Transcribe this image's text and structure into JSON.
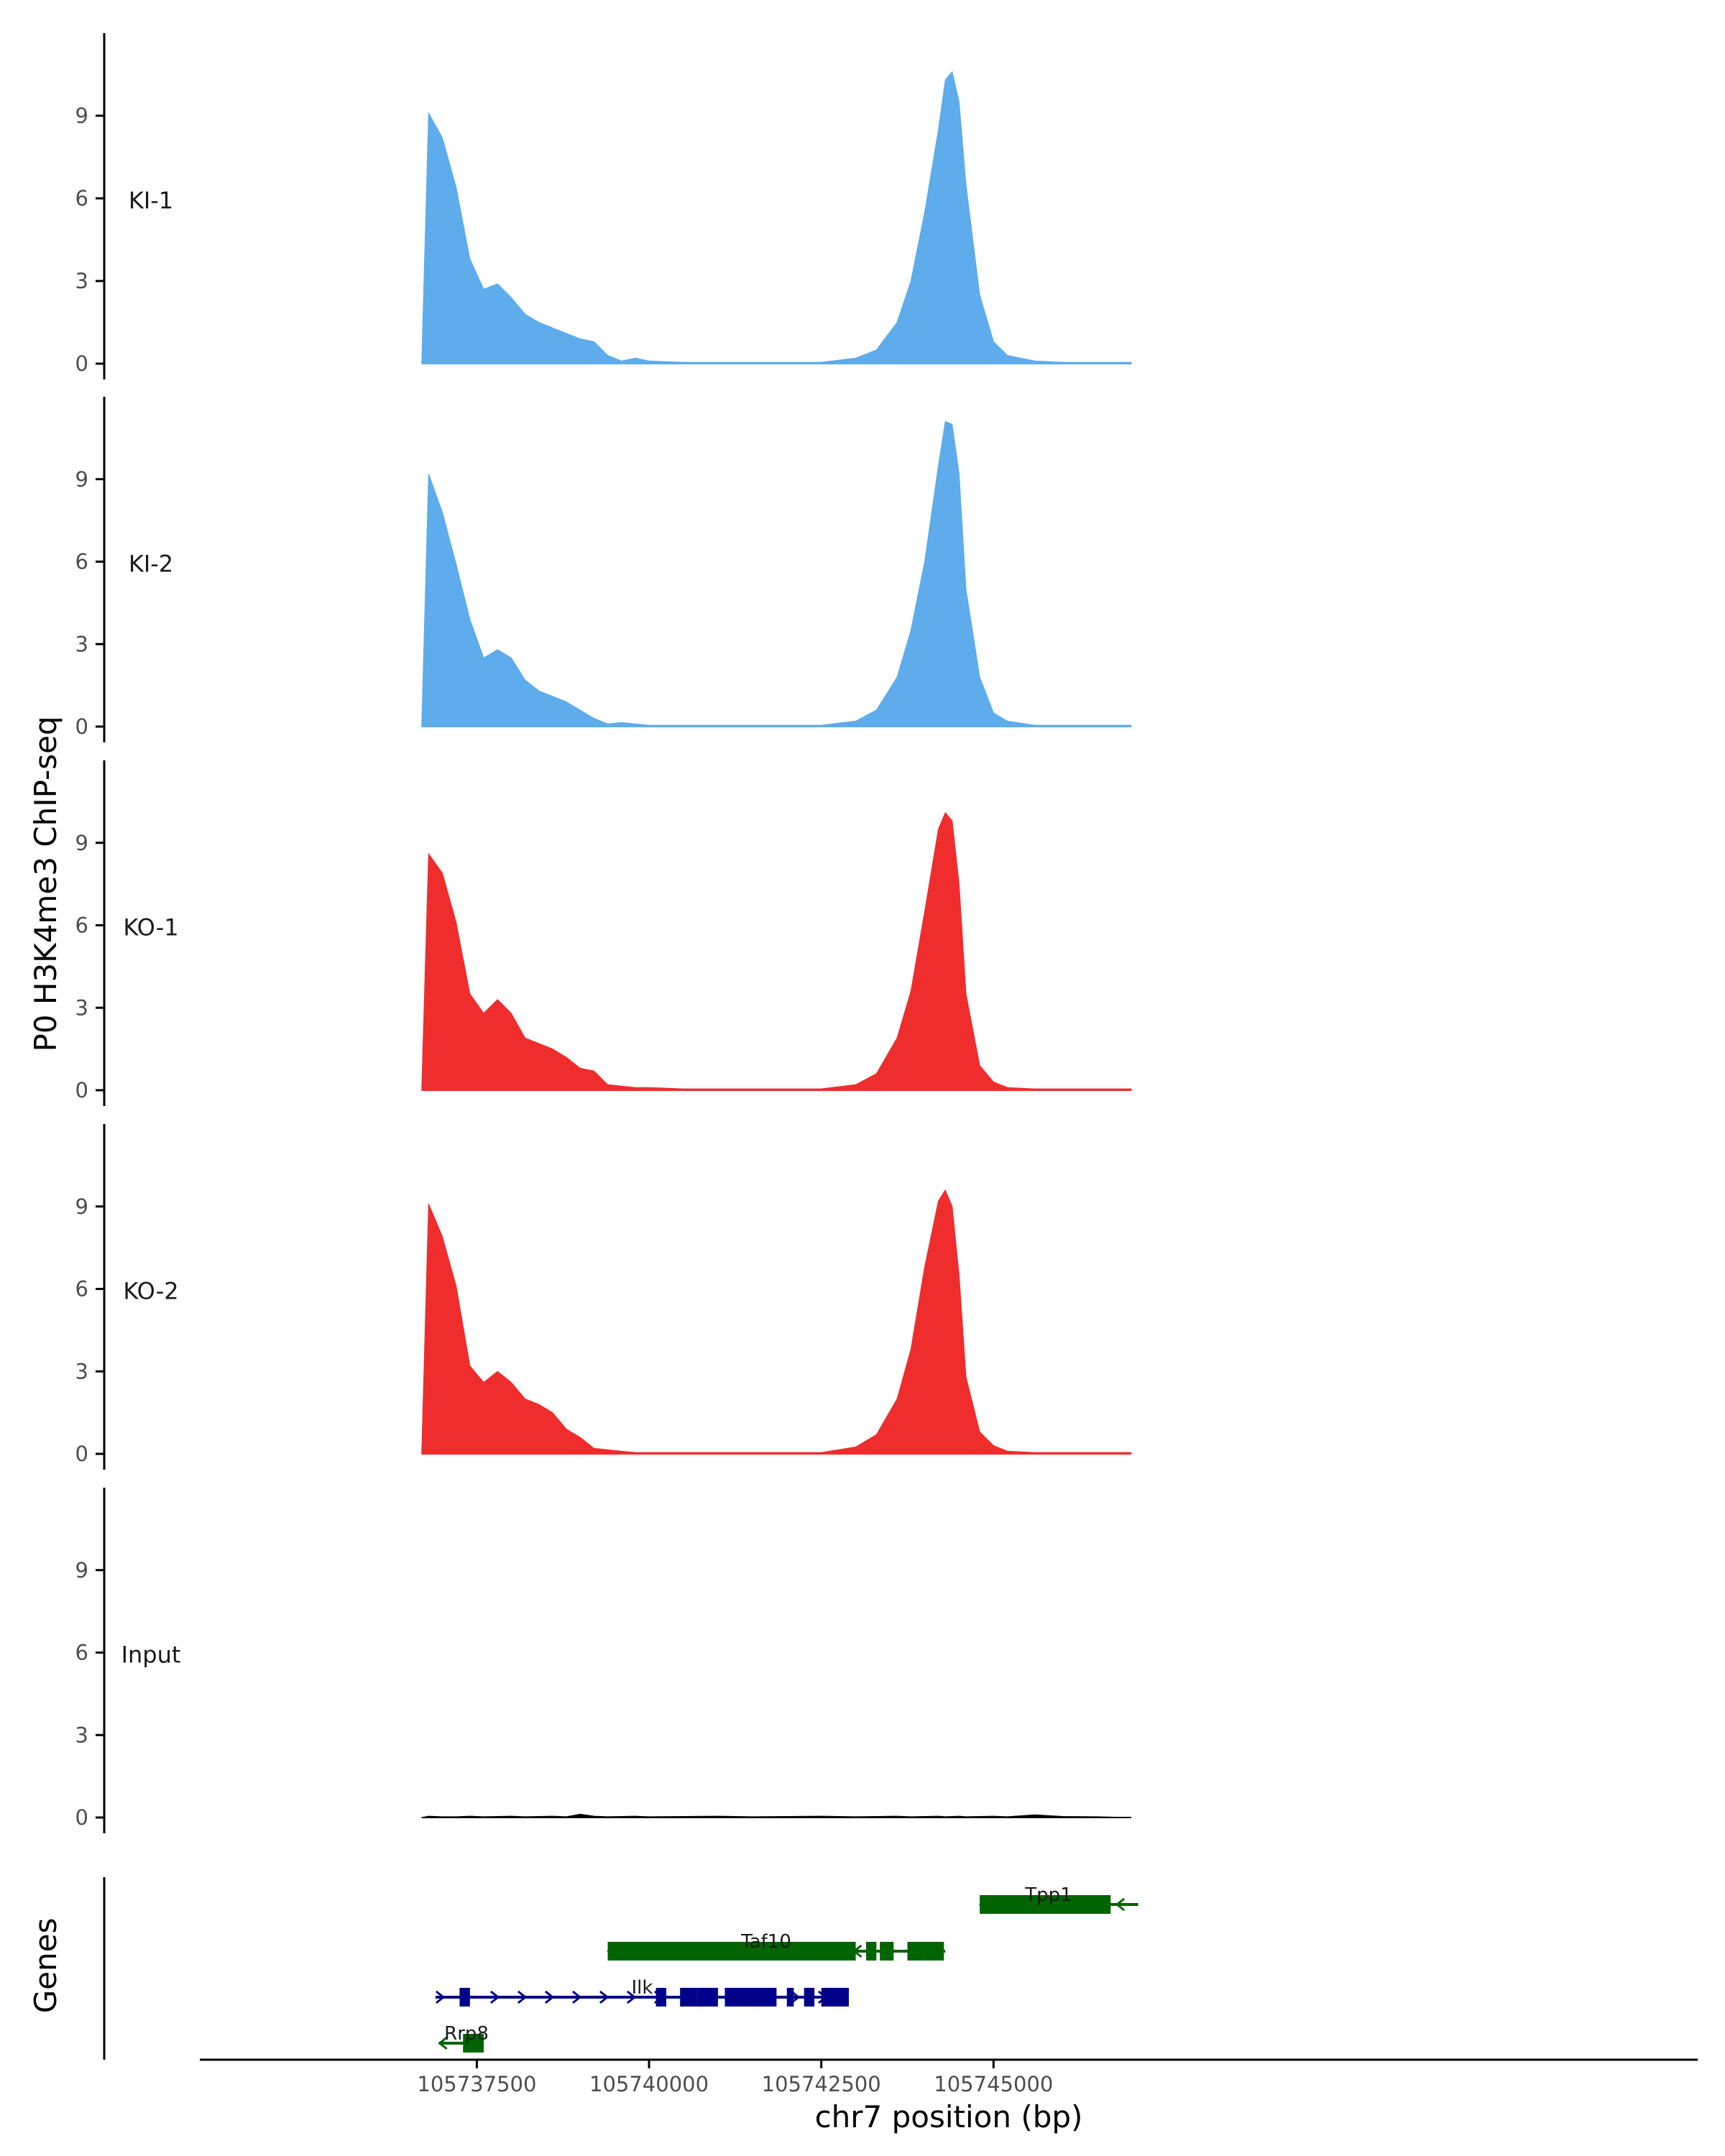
{
  "colors": {
    "ki": "#5eaceb",
    "ko": "#ef2d2d",
    "input": "#000000",
    "gene_plus": "#00008b",
    "gene_minus": "#006400",
    "axis": "#000000"
  },
  "chart_data": {
    "type": "area",
    "ylabel": "P0 H3K4me3 ChIP-seq",
    "xlabel": "chr7 position (bp)",
    "genes_label": "Genes",
    "chromosome": "chr7",
    "xlim": [
      105733500,
      105755200
    ],
    "ylim": [
      0,
      12
    ],
    "yticks": [
      0,
      3,
      6,
      9
    ],
    "xticks": [
      105737500,
      105740000,
      105742500,
      105745000
    ],
    "x": [
      105736700,
      105736800,
      105737000,
      105737200,
      105737400,
      105737600,
      105737800,
      105738000,
      105738200,
      105738400,
      105738600,
      105738800,
      105739000,
      105739200,
      105739400,
      105739600,
      105739800,
      105740000,
      105740500,
      105741000,
      105741500,
      105742000,
      105742500,
      105743000,
      105743300,
      105743600,
      105743800,
      105744000,
      105744200,
      105744300,
      105744400,
      105744500,
      105744600,
      105744800,
      105745000,
      105745200,
      105745600,
      105746000,
      105746500,
      105747000
    ],
    "series": [
      {
        "name": "KI-1",
        "color_key": "ki",
        "values": [
          0,
          9.1,
          8.2,
          6.4,
          3.8,
          2.7,
          2.9,
          2.4,
          1.8,
          1.5,
          1.3,
          1.1,
          0.9,
          0.8,
          0.3,
          0.1,
          0.2,
          0.1,
          0.05,
          0.05,
          0.05,
          0.05,
          0.05,
          0.2,
          0.5,
          1.5,
          3,
          5.5,
          8.5,
          10.3,
          10.6,
          9.5,
          6.5,
          2.5,
          0.8,
          0.3,
          0.1,
          0.05,
          0.05,
          0.05
        ]
      },
      {
        "name": "KI-2",
        "color_key": "ki",
        "values": [
          0,
          9.2,
          7.8,
          5.9,
          3.9,
          2.5,
          2.8,
          2.5,
          1.7,
          1.3,
          1.1,
          0.9,
          0.6,
          0.3,
          0.1,
          0.15,
          0.1,
          0.05,
          0.05,
          0.05,
          0.05,
          0.05,
          0.05,
          0.2,
          0.6,
          1.8,
          3.5,
          6,
          9.5,
          11.1,
          11,
          9.2,
          5,
          1.8,
          0.5,
          0.2,
          0.05,
          0.05,
          0.05,
          0.05
        ]
      },
      {
        "name": "KO-1",
        "color_key": "ko",
        "values": [
          0,
          8.6,
          7.9,
          6.1,
          3.5,
          2.8,
          3.3,
          2.8,
          1.9,
          1.7,
          1.5,
          1.2,
          0.8,
          0.7,
          0.2,
          0.15,
          0.1,
          0.1,
          0.05,
          0.05,
          0.05,
          0.05,
          0.05,
          0.2,
          0.6,
          1.9,
          3.6,
          6.5,
          9.5,
          10.1,
          9.8,
          7.5,
          3.5,
          0.9,
          0.3,
          0.1,
          0.05,
          0.05,
          0.05,
          0.05
        ]
      },
      {
        "name": "KO-2",
        "color_key": "ko",
        "values": [
          0,
          9.1,
          7.9,
          6.1,
          3.2,
          2.6,
          3.0,
          2.6,
          2.0,
          1.8,
          1.5,
          0.9,
          0.6,
          0.2,
          0.15,
          0.1,
          0.05,
          0.05,
          0.05,
          0.05,
          0.05,
          0.05,
          0.05,
          0.25,
          0.7,
          2.0,
          3.8,
          6.8,
          9.2,
          9.6,
          9.0,
          6.5,
          2.8,
          0.8,
          0.3,
          0.1,
          0.05,
          0.05,
          0.05,
          0.05
        ]
      },
      {
        "name": "Input",
        "color_key": "input",
        "values": [
          0,
          0.05,
          0.03,
          0.03,
          0.05,
          0.03,
          0.04,
          0.05,
          0.03,
          0.04,
          0.05,
          0.03,
          0.12,
          0.05,
          0.03,
          0.04,
          0.05,
          0.03,
          0.04,
          0.05,
          0.03,
          0.04,
          0.05,
          0.03,
          0.04,
          0.05,
          0.03,
          0.04,
          0.05,
          0.03,
          0.04,
          0.05,
          0.03,
          0.04,
          0.05,
          0.03,
          0.1,
          0.04,
          0.03,
          0
        ]
      }
    ],
    "genes": [
      {
        "name": "Tpp1",
        "strand": "-",
        "row": 0,
        "start": 105744800,
        "end": 105747100,
        "label_x": 105745800,
        "blocks": [
          [
            105744800,
            105746700
          ]
        ]
      },
      {
        "name": "Taf10",
        "strand": "-",
        "row": 1,
        "start": 105739400,
        "end": 105744300,
        "label_x": 105741700,
        "blocks": [
          [
            105739400,
            105743000
          ],
          [
            105743150,
            105743300
          ],
          [
            105743350,
            105743550
          ],
          [
            105743750,
            105744000
          ],
          [
            105744000,
            105744280
          ]
        ]
      },
      {
        "name": "Ilk",
        "strand": "+",
        "row": 2,
        "start": 105736900,
        "end": 105742900,
        "label_x": 105739900,
        "blocks": [
          [
            105737250,
            105737400
          ],
          [
            105740100,
            105740250
          ],
          [
            105740450,
            105740700
          ],
          [
            105740700,
            105741000
          ],
          [
            105741100,
            105741850
          ],
          [
            105742000,
            105742100
          ],
          [
            105742250,
            105742400
          ],
          [
            105742500,
            105742900
          ]
        ]
      },
      {
        "name": "Rrp8",
        "strand": "-",
        "row": 3,
        "start": 105736950,
        "end": 105737600,
        "label_x": 105737350,
        "blocks": [
          [
            105737300,
            105737600
          ]
        ]
      }
    ]
  }
}
